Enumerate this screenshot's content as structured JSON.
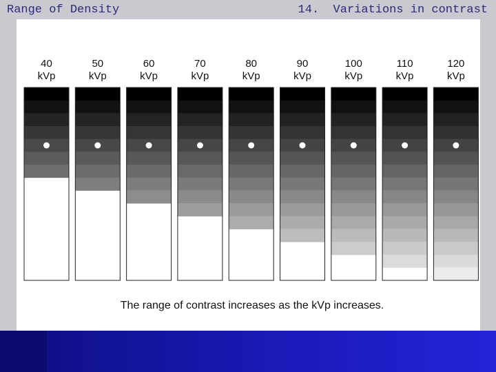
{
  "header": {
    "title": "Range of Density",
    "slide": "14.  Variations in contrast"
  },
  "wedges": [
    {
      "value": "40",
      "unit": "kVp"
    },
    {
      "value": "50",
      "unit": "kVp"
    },
    {
      "value": "60",
      "unit": "kVp"
    },
    {
      "value": "70",
      "unit": "kVp"
    },
    {
      "value": "80",
      "unit": "kVp"
    },
    {
      "value": "90",
      "unit": "kVp"
    },
    {
      "value": "100",
      "unit": "kVp"
    },
    {
      "value": "110",
      "unit": "kVp"
    },
    {
      "value": "120",
      "unit": "kVp"
    }
  ],
  "caption": "The range of contrast increases as the kVp increases."
}
